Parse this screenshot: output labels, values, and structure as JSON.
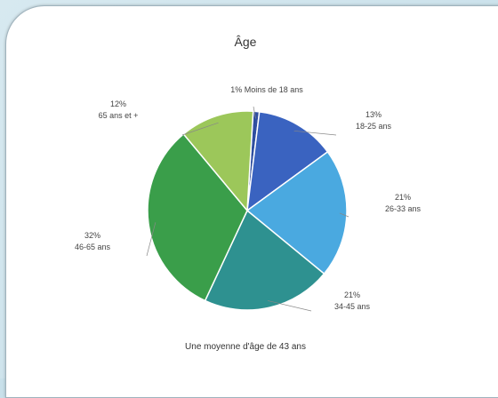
{
  "chart_data": {
    "type": "pie",
    "title": "Âge",
    "subtitle": "Une moyenne d'âge de 43 ans",
    "slices": [
      {
        "label": "Moins de 18 ans",
        "value": 1,
        "percent_label": "1%",
        "color": "#2f4fa0"
      },
      {
        "label": "18-25 ans",
        "value": 13,
        "percent_label": "13%",
        "color": "#3a63c0"
      },
      {
        "label": "26-33 ans",
        "value": 21,
        "percent_label": "21%",
        "color": "#4aa9e0"
      },
      {
        "label": "34-45 ans",
        "value": 21,
        "percent_label": "21%",
        "color": "#2e9190"
      },
      {
        "label": "46-65 ans",
        "value": 32,
        "percent_label": "32%",
        "color": "#3a9e4a"
      },
      {
        "label": "65 ans et +",
        "value": 12,
        "percent_label": "12%",
        "color": "#9cc75a"
      }
    ]
  }
}
